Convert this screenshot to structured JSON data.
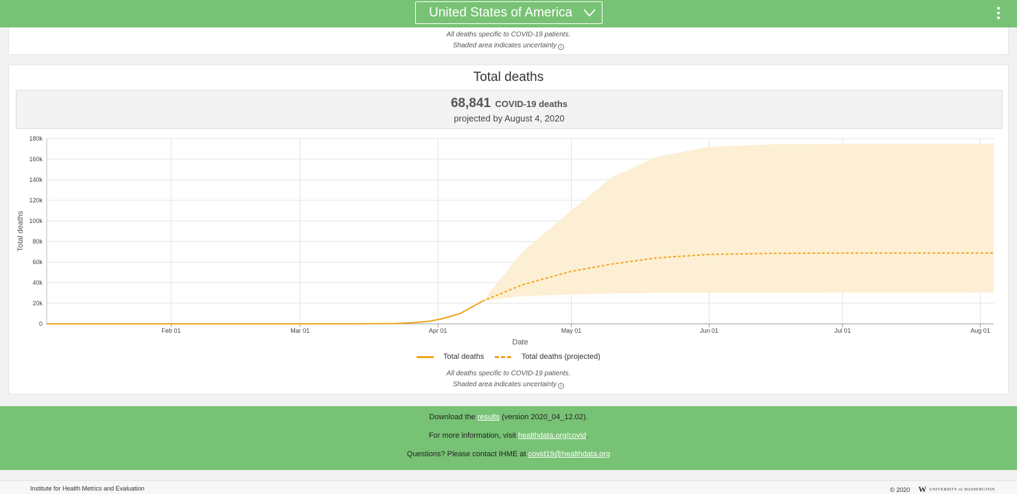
{
  "header": {
    "country": "United States of America",
    "chevron_icon": "chevron-down-icon",
    "menu_icon": "kebab-menu-icon"
  },
  "prev_card": {
    "note_line1": "All deaths specific to COVID-19 patients.",
    "note_line2": "Shaded area indicates uncertainty"
  },
  "card": {
    "title": "Total deaths",
    "summary_value": "68,841",
    "summary_unit": "COVID-19 deaths",
    "summary_sub": "projected by August 4, 2020",
    "note_line1": "All deaths specific to COVID-19 patients.",
    "note_line2": "Shaded area indicates uncertainty"
  },
  "chart_data": {
    "type": "line",
    "title": "Total deaths",
    "xlabel": "Date",
    "ylabel": "Total deaths",
    "ylim": [
      0,
      180000
    ],
    "xlim": [
      "2020-01-04",
      "2020-08-04"
    ],
    "y_ticks": [
      0,
      20000,
      40000,
      60000,
      80000,
      100000,
      120000,
      140000,
      160000,
      180000
    ],
    "y_tick_labels": [
      "0",
      "20k",
      "40k",
      "60k",
      "80k",
      "100k",
      "120k",
      "140k",
      "160k",
      "180k"
    ],
    "x_ticks": [
      "2020-02-01",
      "2020-03-01",
      "2020-04-01",
      "2020-05-01",
      "2020-06-01",
      "2020-07-01",
      "2020-08-01"
    ],
    "x_tick_labels": [
      "Feb 01",
      "Mar 01",
      "Apr 01",
      "May 01",
      "Jun 01",
      "Jul 01",
      "Aug 01"
    ],
    "grid": true,
    "legend": "bottom-center",
    "colors": {
      "line": "#f0a51c",
      "band": "#fdefd4"
    },
    "series": [
      {
        "name": "Total deaths",
        "style": "solid",
        "x": [
          "2020-01-04",
          "2020-03-01",
          "2020-03-15",
          "2020-03-22",
          "2020-03-26",
          "2020-03-30",
          "2020-04-02",
          "2020-04-06",
          "2020-04-11"
        ],
        "y": [
          0,
          0,
          100,
          300,
          1000,
          2500,
          5000,
          10000,
          22000
        ]
      },
      {
        "name": "Total deaths (projected)",
        "style": "dashed",
        "x": [
          "2020-04-11",
          "2020-04-20",
          "2020-05-01",
          "2020-05-10",
          "2020-05-20",
          "2020-06-01",
          "2020-06-15",
          "2020-07-01",
          "2020-08-04"
        ],
        "y": [
          22000,
          38000,
          51000,
          58000,
          64000,
          67500,
          68500,
          68800,
          68841
        ],
        "lower": [
          22000,
          27000,
          28500,
          29500,
          30000,
          30200,
          30300,
          30400,
          30500
        ],
        "upper": [
          22000,
          70000,
          110000,
          142000,
          162000,
          172000,
          174500,
          175000,
          175000
        ]
      }
    ]
  },
  "footer": {
    "line1_pre": "Download the",
    "line1_link": "results",
    "line1_post": "(version 2020_04_12.02).",
    "line2_pre": "For more information, visit",
    "line2_link": "healthdata.org/covid",
    "line2_post": ".",
    "line3_pre": "Questions? Please contact IHME at",
    "line3_link": "covid19@healthdata.org"
  },
  "bottom": {
    "org": "Institute for Health Metrics and Evaluation",
    "copyright": "© 2020",
    "uw_logo": "W",
    "uw_name": "UNIVERSITY of WASHINGTON"
  }
}
